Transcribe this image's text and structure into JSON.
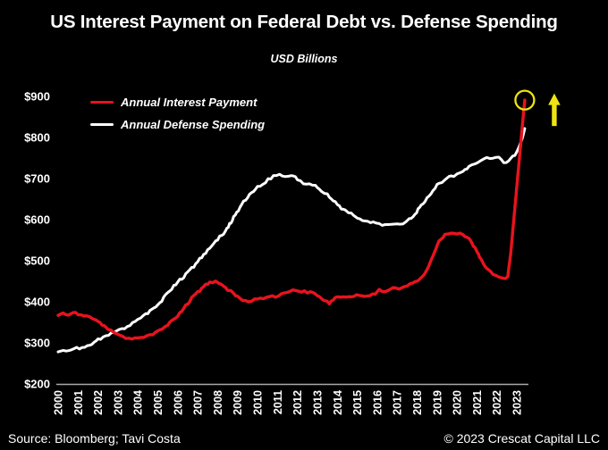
{
  "title": "US Interest Payment on Federal Debt vs. Defense Spending",
  "subtitle": "USD Billions",
  "legend": {
    "items": [
      {
        "label": "Annual Interest Payment",
        "color": "#e8131d"
      },
      {
        "label": "Annual Defense Spending",
        "color": "#ffffff"
      }
    ]
  },
  "footer": {
    "source": "Source: Bloomberg; Tavi Costa",
    "copyright": "© 2023 Crescat Capital LLC"
  },
  "colors": {
    "background": "#000000",
    "text": "#ffffff",
    "axis": "#aaaaaa",
    "interest_red": "#e8131d",
    "defense_white": "#ffffff",
    "highlight_yellow": "#f0e312"
  },
  "chart_data": {
    "type": "line",
    "title": "US Interest Payment on Federal Debt vs. Defense Spending",
    "subtitle_units": "USD Billions",
    "xlabel": "",
    "ylabel": "USD Billions",
    "grid": false,
    "legend_position": "top-left",
    "x_axis": {
      "tick_years": [
        2000,
        2001,
        2002,
        2003,
        2004,
        2005,
        2006,
        2007,
        2008,
        2009,
        2010,
        2011,
        2012,
        2013,
        2014,
        2015,
        2016,
        2017,
        2018,
        2019,
        2020,
        2021,
        2022,
        2023
      ],
      "xlim": [
        2000,
        2023.5
      ]
    },
    "y_axis": {
      "tick_values": [
        200,
        300,
        400,
        500,
        600,
        700,
        800,
        900
      ],
      "tick_labels": [
        "$200",
        "$300",
        "$400",
        "$500",
        "$600",
        "$700",
        "$800",
        "$900"
      ],
      "ylim": [
        200,
        900
      ]
    },
    "series": [
      {
        "name": "Annual Interest Payment",
        "color": "#e8131d",
        "points": [
          [
            2000.0,
            367
          ],
          [
            2000.25,
            372
          ],
          [
            2000.5,
            369
          ],
          [
            2000.75,
            373
          ],
          [
            2001.0,
            371
          ],
          [
            2001.3,
            367
          ],
          [
            2001.6,
            362
          ],
          [
            2001.9,
            355
          ],
          [
            2002.2,
            345
          ],
          [
            2002.5,
            333
          ],
          [
            2002.8,
            324
          ],
          [
            2003.1,
            317
          ],
          [
            2003.4,
            313
          ],
          [
            2003.7,
            310
          ],
          [
            2004.0,
            312
          ],
          [
            2004.3,
            314
          ],
          [
            2004.6,
            318
          ],
          [
            2004.9,
            325
          ],
          [
            2005.2,
            335
          ],
          [
            2005.5,
            345
          ],
          [
            2005.8,
            357
          ],
          [
            2006.1,
            372
          ],
          [
            2006.4,
            390
          ],
          [
            2006.7,
            409
          ],
          [
            2007.0,
            423
          ],
          [
            2007.3,
            438
          ],
          [
            2007.6,
            448
          ],
          [
            2007.9,
            450
          ],
          [
            2008.2,
            443
          ],
          [
            2008.5,
            429
          ],
          [
            2008.8,
            421
          ],
          [
            2009.1,
            408
          ],
          [
            2009.4,
            401
          ],
          [
            2009.7,
            403
          ],
          [
            2010.0,
            407
          ],
          [
            2010.3,
            410
          ],
          [
            2010.6,
            413
          ],
          [
            2010.9,
            412
          ],
          [
            2011.2,
            418
          ],
          [
            2011.5,
            424
          ],
          [
            2011.9,
            430
          ],
          [
            2012.2,
            426
          ],
          [
            2012.5,
            423
          ],
          [
            2012.8,
            422
          ],
          [
            2013.1,
            412
          ],
          [
            2013.4,
            401
          ],
          [
            2013.6,
            396
          ],
          [
            2013.9,
            412
          ],
          [
            2014.3,
            410
          ],
          [
            2014.7,
            413
          ],
          [
            2015.1,
            417
          ],
          [
            2015.5,
            413
          ],
          [
            2015.9,
            421
          ],
          [
            2016.1,
            428
          ],
          [
            2016.4,
            422
          ],
          [
            2016.8,
            434
          ],
          [
            2017.1,
            432
          ],
          [
            2017.5,
            439
          ],
          [
            2017.9,
            447
          ],
          [
            2018.2,
            456
          ],
          [
            2018.5,
            478
          ],
          [
            2018.8,
            512
          ],
          [
            2019.1,
            548
          ],
          [
            2019.4,
            564
          ],
          [
            2019.7,
            569
          ],
          [
            2020.0,
            566
          ],
          [
            2020.3,
            563
          ],
          [
            2020.6,
            553
          ],
          [
            2020.9,
            532
          ],
          [
            2021.2,
            503
          ],
          [
            2021.5,
            480
          ],
          [
            2021.8,
            466
          ],
          [
            2022.1,
            458
          ],
          [
            2022.4,
            455
          ],
          [
            2022.55,
            463
          ],
          [
            2022.7,
            520
          ],
          [
            2022.85,
            600
          ],
          [
            2023.0,
            680
          ],
          [
            2023.15,
            760
          ],
          [
            2023.3,
            840
          ],
          [
            2023.4,
            891
          ]
        ]
      },
      {
        "name": "Annual Defense Spending",
        "color": "#ffffff",
        "points": [
          [
            2000.0,
            278
          ],
          [
            2000.4,
            282
          ],
          [
            2000.8,
            285
          ],
          [
            2001.2,
            290
          ],
          [
            2001.6,
            293
          ],
          [
            2002.0,
            308
          ],
          [
            2002.4,
            316
          ],
          [
            2002.8,
            324
          ],
          [
            2003.2,
            334
          ],
          [
            2003.6,
            343
          ],
          [
            2004.0,
            357
          ],
          [
            2004.4,
            369
          ],
          [
            2004.8,
            385
          ],
          [
            2005.2,
            404
          ],
          [
            2005.6,
            428
          ],
          [
            2006.0,
            448
          ],
          [
            2006.4,
            466
          ],
          [
            2006.8,
            487
          ],
          [
            2007.2,
            510
          ],
          [
            2007.6,
            532
          ],
          [
            2008.0,
            552
          ],
          [
            2008.4,
            572
          ],
          [
            2008.8,
            605
          ],
          [
            2009.2,
            637
          ],
          [
            2009.6,
            660
          ],
          [
            2010.0,
            680
          ],
          [
            2010.4,
            693
          ],
          [
            2010.8,
            705
          ],
          [
            2011.1,
            710
          ],
          [
            2011.4,
            704
          ],
          [
            2011.7,
            708
          ],
          [
            2012.0,
            698
          ],
          [
            2012.3,
            690
          ],
          [
            2012.6,
            686
          ],
          [
            2012.9,
            681
          ],
          [
            2013.2,
            670
          ],
          [
            2013.5,
            661
          ],
          [
            2013.8,
            647
          ],
          [
            2014.1,
            633
          ],
          [
            2014.4,
            621
          ],
          [
            2014.7,
            613
          ],
          [
            2015.0,
            603
          ],
          [
            2015.4,
            597
          ],
          [
            2015.8,
            592
          ],
          [
            2016.1,
            588
          ],
          [
            2016.4,
            585
          ],
          [
            2016.7,
            590
          ],
          [
            2017.0,
            589
          ],
          [
            2017.3,
            592
          ],
          [
            2017.6,
            600
          ],
          [
            2017.9,
            613
          ],
          [
            2018.2,
            634
          ],
          [
            2018.5,
            653
          ],
          [
            2018.8,
            672
          ],
          [
            2019.1,
            688
          ],
          [
            2019.4,
            696
          ],
          [
            2019.7,
            706
          ],
          [
            2020.0,
            711
          ],
          [
            2020.3,
            717
          ],
          [
            2020.6,
            728
          ],
          [
            2020.9,
            737
          ],
          [
            2021.2,
            743
          ],
          [
            2021.5,
            748
          ],
          [
            2021.8,
            747
          ],
          [
            2022.1,
            750
          ],
          [
            2022.35,
            739
          ],
          [
            2022.6,
            743
          ],
          [
            2022.8,
            752
          ],
          [
            2023.0,
            765
          ],
          [
            2023.2,
            788
          ],
          [
            2023.3,
            802
          ],
          [
            2023.4,
            822
          ]
        ]
      }
    ],
    "annotations": {
      "circle": {
        "series": "Annual Interest Payment",
        "year": 2023.4,
        "value": 891,
        "color": "#f0e312"
      },
      "arrow": {
        "direction": "up",
        "color": "#f0e312",
        "near": "interest-payment-peak"
      }
    }
  }
}
